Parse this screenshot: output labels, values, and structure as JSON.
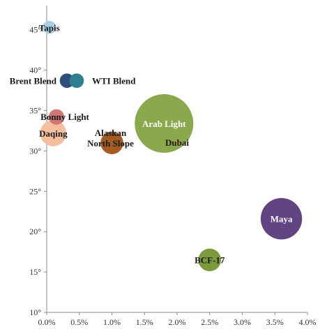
{
  "chart_data": {
    "type": "bubble",
    "title": "",
    "xlabel": "",
    "ylabel": "",
    "xlim": [
      0,
      4
    ],
    "ylim": [
      10,
      48
    ],
    "x_ticks": [
      0,
      0.5,
      1,
      1.5,
      2,
      2.5,
      3,
      3.5,
      4
    ],
    "x_tick_labels": [
      "0.0%",
      "0.5%",
      "1.0%",
      "1.5%",
      "2.0%",
      "2.5%",
      "3.0%",
      "3.5%",
      "4.0%"
    ],
    "y_ticks": [
      10,
      15,
      20,
      25,
      30,
      35,
      40,
      45
    ],
    "y_tick_labels": [
      "10°",
      "15°",
      "20°",
      "25°",
      "30°",
      "35°",
      "40°",
      "45°"
    ],
    "grid": false,
    "legend": "none",
    "points": [
      {
        "label": "Tapis",
        "x": 0.04,
        "y": 45.3,
        "size": 1,
        "color": "#a9cfe3"
      },
      {
        "label": "Brent Blend",
        "x": 0.31,
        "y": 38.7,
        "size": 1.2,
        "color": "#2e4f7c"
      },
      {
        "label": "WTI Blend",
        "x": 0.46,
        "y": 38.7,
        "size": 1.2,
        "color": "#2f7f8e"
      },
      {
        "label": "Bonny Light",
        "x": 0.15,
        "y": 34.2,
        "size": 1.4,
        "color": "#cf7677"
      },
      {
        "label": "Daqing",
        "x": 0.1,
        "y": 32.2,
        "size": 4,
        "color": "#f5bf9f"
      },
      {
        "label": "Alaskan North Slope",
        "x": 1.0,
        "y": 31.0,
        "size": 3,
        "color": "#a55b22"
      },
      {
        "label": "Arab Light",
        "x": 1.8,
        "y": 33.4,
        "size": 20,
        "color": "#8aa84c"
      },
      {
        "label": "Dubai",
        "x": 2.0,
        "y": 31.0,
        "size": 0.15,
        "color": "#d6a23c"
      },
      {
        "label": "Maya",
        "x": 3.6,
        "y": 21.6,
        "size": 10,
        "color": "#614583"
      },
      {
        "label": "BCF-17",
        "x": 2.5,
        "y": 16.5,
        "size": 3,
        "color": "#7a9a3b"
      }
    ]
  }
}
